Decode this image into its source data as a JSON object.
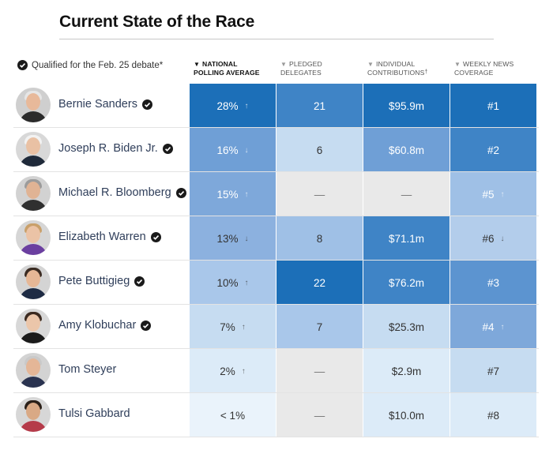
{
  "title": "Current State of the Race",
  "legend": {
    "text": "Qualified for the Feb. 25 debate*",
    "icon": "check-circle-icon"
  },
  "columns": [
    {
      "key": "poll",
      "line1": "National",
      "line2": "Polling Average",
      "sort_indicator": "down-triangle-icon",
      "active": true
    },
    {
      "key": "delegates",
      "line1": "Pledged",
      "line2": "Delegates",
      "sort_indicator": "down-triangle-icon",
      "active": false
    },
    {
      "key": "contrib",
      "line1": "Individual",
      "line2": "Contributions",
      "line2_suffix": "†",
      "sort_indicator": "down-triangle-icon",
      "active": false
    },
    {
      "key": "news",
      "line1": "Weekly News",
      "line2": "Coverage",
      "sort_indicator": "down-triangle-icon",
      "active": false
    }
  ],
  "colors": {
    "empty": "#e9e9e9",
    "dark": "#1c6fb8",
    "mid_dark": "#3f84c6",
    "mid": "#6f9fd6",
    "light": "#9fc0e6",
    "lighter": "#c6dcf1",
    "lightest": "#dcebf8",
    "palest": "#eaf3fb"
  },
  "rows": [
    {
      "name": "Bernie Sanders",
      "qualified": true,
      "cells": [
        {
          "text": "28%",
          "arrow": "↑",
          "bg": "#1c6fb8",
          "fg": "#ffffff"
        },
        {
          "text": "21",
          "arrow": "",
          "bg": "#3f84c6",
          "fg": "#ffffff"
        },
        {
          "text": "$95.9m",
          "arrow": "",
          "bg": "#1c6fb8",
          "fg": "#ffffff"
        },
        {
          "text": "#1",
          "arrow": "",
          "bg": "#1c6fb8",
          "fg": "#ffffff"
        }
      ]
    },
    {
      "name": "Joseph R. Biden Jr.",
      "qualified": true,
      "cells": [
        {
          "text": "16%",
          "arrow": "↓",
          "bg": "#6f9fd6",
          "fg": "#ffffff"
        },
        {
          "text": "6",
          "arrow": "",
          "bg": "#c6dcf1",
          "fg": "#333333"
        },
        {
          "text": "$60.8m",
          "arrow": "",
          "bg": "#6f9fd6",
          "fg": "#ffffff"
        },
        {
          "text": "#2",
          "arrow": "",
          "bg": "#3f84c6",
          "fg": "#ffffff"
        }
      ]
    },
    {
      "name": "Michael R. Bloomberg",
      "qualified": true,
      "cells": [
        {
          "text": "15%",
          "arrow": "↑",
          "bg": "#7ea8da",
          "fg": "#ffffff"
        },
        {
          "text": "—",
          "arrow": "",
          "bg": "#e9e9e9",
          "fg": "#777777"
        },
        {
          "text": "—",
          "arrow": "",
          "bg": "#e9e9e9",
          "fg": "#777777"
        },
        {
          "text": "#5",
          "arrow": "↑",
          "bg": "#9fc0e6",
          "fg": "#ffffff"
        }
      ]
    },
    {
      "name": "Elizabeth Warren",
      "qualified": true,
      "cells": [
        {
          "text": "13%",
          "arrow": "↓",
          "bg": "#8cb1df",
          "fg": "#333333"
        },
        {
          "text": "8",
          "arrow": "",
          "bg": "#9fc0e6",
          "fg": "#333333"
        },
        {
          "text": "$71.1m",
          "arrow": "",
          "bg": "#3f84c6",
          "fg": "#ffffff"
        },
        {
          "text": "#6",
          "arrow": "↓",
          "bg": "#b3cdeb",
          "fg": "#333333"
        }
      ]
    },
    {
      "name": "Pete Buttigieg",
      "qualified": true,
      "cells": [
        {
          "text": "10%",
          "arrow": "↑",
          "bg": "#a9c7ea",
          "fg": "#333333"
        },
        {
          "text": "22",
          "arrow": "",
          "bg": "#1c6fb8",
          "fg": "#ffffff"
        },
        {
          "text": "$76.2m",
          "arrow": "",
          "bg": "#3f84c6",
          "fg": "#ffffff"
        },
        {
          "text": "#3",
          "arrow": "",
          "bg": "#5c94d0",
          "fg": "#ffffff"
        }
      ]
    },
    {
      "name": "Amy Klobuchar",
      "qualified": true,
      "cells": [
        {
          "text": "7%",
          "arrow": "↑",
          "bg": "#c6dcf1",
          "fg": "#333333"
        },
        {
          "text": "7",
          "arrow": "",
          "bg": "#a9c7ea",
          "fg": "#333333"
        },
        {
          "text": "$25.3m",
          "arrow": "",
          "bg": "#c6dcf1",
          "fg": "#333333"
        },
        {
          "text": "#4",
          "arrow": "↑",
          "bg": "#7ea8da",
          "fg": "#ffffff"
        }
      ]
    },
    {
      "name": "Tom Steyer",
      "qualified": false,
      "cells": [
        {
          "text": "2%",
          "arrow": "↑",
          "bg": "#dcebf8",
          "fg": "#333333"
        },
        {
          "text": "—",
          "arrow": "",
          "bg": "#e9e9e9",
          "fg": "#777777"
        },
        {
          "text": "$2.9m",
          "arrow": "",
          "bg": "#dcebf8",
          "fg": "#333333"
        },
        {
          "text": "#7",
          "arrow": "",
          "bg": "#c6dcf1",
          "fg": "#333333"
        }
      ]
    },
    {
      "name": "Tulsi Gabbard",
      "qualified": false,
      "cells": [
        {
          "text": "< 1%",
          "arrow": "",
          "bg": "#eaf3fb",
          "fg": "#333333"
        },
        {
          "text": "—",
          "arrow": "",
          "bg": "#e9e9e9",
          "fg": "#777777"
        },
        {
          "text": "$10.0m",
          "arrow": "",
          "bg": "#dcebf8",
          "fg": "#333333"
        },
        {
          "text": "#8",
          "arrow": "",
          "bg": "#dcebf8",
          "fg": "#333333"
        }
      ]
    }
  ]
}
